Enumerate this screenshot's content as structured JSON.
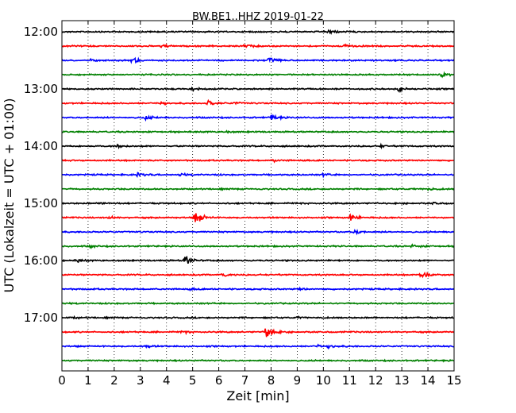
{
  "chart_data": {
    "type": "line",
    "title": "BW.BE1..HHZ 2019-01-22",
    "xlabel": "Zeit  [min]",
    "ylabel": "UTC (Lokalzeit = UTC + 01:00)",
    "xlim": [
      0,
      15
    ],
    "x_ticks": [
      "0",
      "1",
      "2",
      "3",
      "4",
      "5",
      "6",
      "7",
      "8",
      "9",
      "10",
      "11",
      "12",
      "13",
      "14",
      "15"
    ],
    "y_tick_labels": [
      "12:00",
      "13:00",
      "14:00",
      "15:00",
      "16:00",
      "17:00"
    ],
    "grid": "vertical dotted",
    "color_cycle": [
      "#000000",
      "#ff0000",
      "#0000ff",
      "#008000"
    ],
    "series": [
      {
        "start": "12:00",
        "events": [
          [
            10.2,
            0.25
          ]
        ]
      },
      {
        "start": "12:15",
        "events": [
          [
            3.8,
            0.18
          ],
          [
            7.0,
            0.22
          ],
          [
            10.8,
            0.2
          ]
        ]
      },
      {
        "start": "12:30",
        "events": [
          [
            1.1,
            0.15
          ],
          [
            2.7,
            0.45
          ],
          [
            7.9,
            0.35
          ]
        ]
      },
      {
        "start": "12:45",
        "events": [
          [
            14.5,
            0.25
          ]
        ]
      },
      {
        "start": "13:00",
        "events": [
          [
            5.0,
            0.2
          ],
          [
            12.9,
            0.3
          ]
        ]
      },
      {
        "start": "13:15",
        "events": [
          [
            3.8,
            0.25
          ],
          [
            5.6,
            0.3
          ],
          [
            6.6,
            0.15
          ]
        ]
      },
      {
        "start": "13:30",
        "events": [
          [
            3.2,
            0.25
          ],
          [
            8.0,
            0.45
          ]
        ]
      },
      {
        "start": "13:45",
        "events": [
          [
            6.3,
            0.12
          ]
        ]
      },
      {
        "start": "14:00",
        "events": [
          [
            2.1,
            0.2
          ],
          [
            12.2,
            0.15
          ]
        ]
      },
      {
        "start": "14:15",
        "events": [
          [
            8.1,
            0.2
          ]
        ]
      },
      {
        "start": "14:30",
        "events": [
          [
            2.9,
            0.2
          ],
          [
            4.5,
            0.15
          ],
          [
            10.0,
            0.15
          ]
        ]
      },
      {
        "start": "14:45",
        "events": [
          [
            14.0,
            0.18
          ]
        ]
      },
      {
        "start": "15:00",
        "events": [
          [
            1.5,
            0.12
          ],
          [
            14.2,
            0.12
          ]
        ]
      },
      {
        "start": "15:15",
        "events": [
          [
            1.8,
            0.15
          ],
          [
            5.1,
            1.0
          ],
          [
            11.0,
            0.55
          ]
        ]
      },
      {
        "start": "15:30",
        "events": [
          [
            11.2,
            0.3
          ]
        ]
      },
      {
        "start": "15:45",
        "events": [
          [
            1.1,
            0.15
          ],
          [
            13.4,
            0.2
          ]
        ]
      },
      {
        "start": "16:00",
        "events": [
          [
            0.6,
            0.2
          ],
          [
            4.7,
            0.6
          ]
        ]
      },
      {
        "start": "16:15",
        "events": [
          [
            6.1,
            0.3
          ],
          [
            13.7,
            0.5
          ]
        ]
      },
      {
        "start": "16:30",
        "events": [
          [
            4.9,
            0.12
          ],
          [
            9.1,
            0.12
          ]
        ]
      },
      {
        "start": "16:45",
        "events": []
      },
      {
        "start": "17:00",
        "events": [
          [
            0.4,
            0.12
          ],
          [
            9.0,
            0.1
          ]
        ]
      },
      {
        "start": "17:15",
        "events": [
          [
            4.6,
            0.18
          ],
          [
            7.8,
            0.8
          ]
        ]
      },
      {
        "start": "17:30",
        "events": [
          [
            3.2,
            0.15
          ],
          [
            9.8,
            0.2
          ],
          [
            10.2,
            0.25
          ]
        ]
      },
      {
        "start": "17:45",
        "events": []
      }
    ]
  }
}
